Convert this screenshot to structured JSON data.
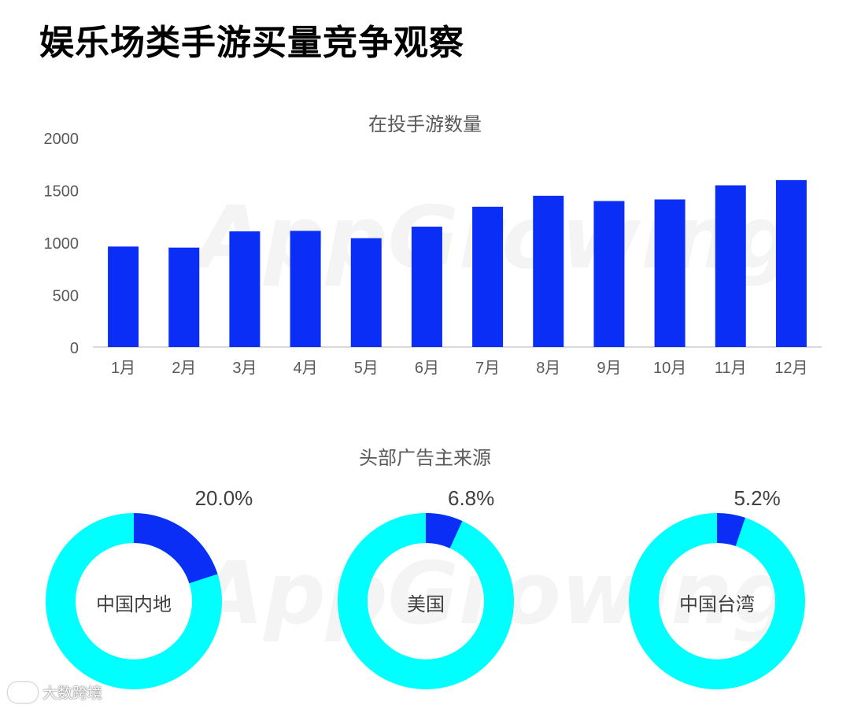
{
  "page": {
    "title": "娱乐场类手游买量竞争观察"
  },
  "watermark": "AppGrowing",
  "footer": {
    "brand": "大数跨境"
  },
  "colors": {
    "bar": "#0a2ef5",
    "donut_main": "#0a2ef5",
    "donut_rest": "#00ffff",
    "axis": "#d9d9d9"
  },
  "chart_data": [
    {
      "type": "bar",
      "title": "在投手游数量",
      "categories": [
        "1月",
        "2月",
        "3月",
        "4月",
        "5月",
        "6月",
        "7月",
        "8月",
        "9月",
        "10月",
        "11月",
        "12月"
      ],
      "values": [
        960,
        950,
        1105,
        1110,
        1040,
        1150,
        1340,
        1445,
        1395,
        1410,
        1545,
        1595
      ],
      "ylim": [
        0,
        2000
      ],
      "yticks": [
        0,
        500,
        1000,
        1500,
        2000
      ],
      "grid": false
    },
    {
      "type": "pie",
      "title": "头部广告主来源",
      "donuts": [
        {
          "label": "中国内地",
          "value": 20.0,
          "value_label": "20.0%"
        },
        {
          "label": "美国",
          "value": 6.8,
          "value_label": "6.8%"
        },
        {
          "label": "中国台湾",
          "value": 5.2,
          "value_label": "5.2%"
        }
      ]
    }
  ]
}
